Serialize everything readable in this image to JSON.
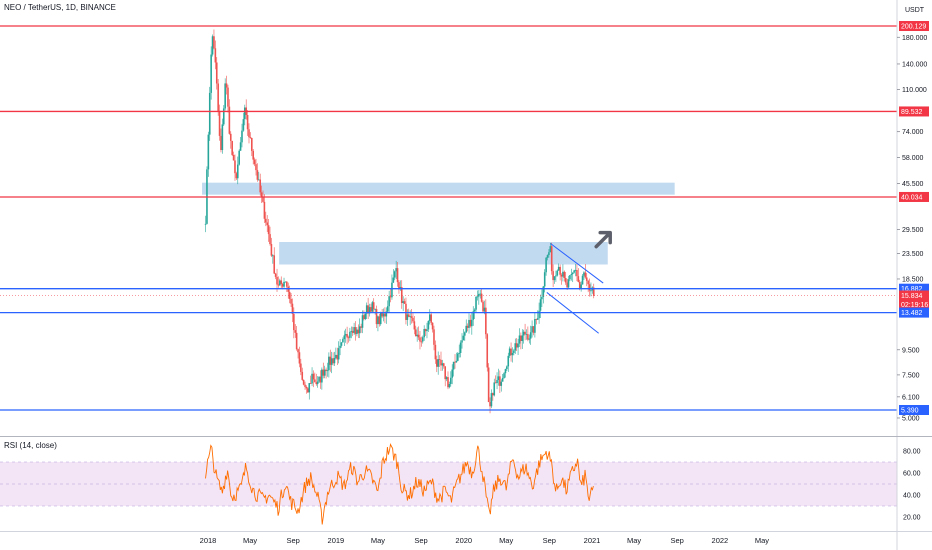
{
  "header": {
    "title": "NEO / TetherUS, 1D, BINANCE"
  },
  "rsi_panel": {
    "title": "RSI (14, close)"
  },
  "chart_data": [
    {
      "type": "candlestick",
      "title": "NEO / TetherUS, 1D, BINANCE",
      "scale": "log",
      "currency": "USDT",
      "price_axis_ticks": [
        "200.129",
        "180.000",
        "140.000",
        "110.000",
        "89.532",
        "74.000",
        "58.000",
        "45.500",
        "40.034",
        "29.500",
        "23.500",
        "18.500",
        "16.882",
        "15.834",
        "02:19:16",
        "13.482",
        "9.500",
        "7.500",
        "6.100",
        "5.390",
        "5.000"
      ],
      "x_tick_labels": [
        "2018",
        "May",
        "Sep",
        "2019",
        "May",
        "Sep",
        "2020",
        "May",
        "Sep",
        "2021",
        "May",
        "Sep",
        "2022",
        "May"
      ],
      "price_path": [
        [
          "2017-12-25",
          33
        ],
        [
          "2018-01-08",
          135
        ],
        [
          "2018-01-15",
          190
        ],
        [
          "2018-01-25",
          120
        ],
        [
          "2018-02-06",
          58
        ],
        [
          "2018-02-20",
          125
        ],
        [
          "2018-03-05",
          70
        ],
        [
          "2018-03-20",
          47
        ],
        [
          "2018-04-01",
          60
        ],
        [
          "2018-04-15",
          90
        ],
        [
          "2018-05-01",
          68
        ],
        [
          "2018-05-15",
          55
        ],
        [
          "2018-06-01",
          40
        ],
        [
          "2018-06-20",
          30
        ],
        [
          "2018-07-05",
          22
        ],
        [
          "2018-07-20",
          17
        ],
        [
          "2018-08-10",
          18.5
        ],
        [
          "2018-08-25",
          15
        ],
        [
          "2018-09-10",
          9.8
        ],
        [
          "2018-09-25",
          7.3
        ],
        [
          "2018-10-10",
          6.2
        ],
        [
          "2018-10-25",
          7.5
        ],
        [
          "2018-11-10",
          6.8
        ],
        [
          "2018-11-25",
          7.8
        ],
        [
          "2018-12-15",
          8.5
        ],
        [
          "2019-01-10",
          9.2
        ],
        [
          "2019-01-28",
          10.6
        ],
        [
          "2019-02-15",
          12
        ],
        [
          "2019-03-05",
          11
        ],
        [
          "2019-03-25",
          13.5
        ],
        [
          "2019-04-12",
          14.5
        ],
        [
          "2019-05-01",
          12.4
        ],
        [
          "2019-05-20",
          13.2
        ],
        [
          "2019-06-10",
          17.3
        ],
        [
          "2019-06-22",
          20.5
        ],
        [
          "2019-07-05",
          16
        ],
        [
          "2019-07-25",
          12.5
        ],
        [
          "2019-08-10",
          12
        ],
        [
          "2019-08-25",
          10.2
        ],
        [
          "2019-09-15",
          11.3
        ],
        [
          "2019-09-28",
          13.2
        ],
        [
          "2019-10-15",
          8.3
        ],
        [
          "2019-11-01",
          8.0
        ],
        [
          "2019-11-20",
          6.8
        ],
        [
          "2019-12-10",
          8.8
        ],
        [
          "2020-01-05",
          11.3
        ],
        [
          "2020-01-25",
          13.0
        ],
        [
          "2020-02-12",
          16.8
        ],
        [
          "2020-03-01",
          13.5
        ],
        [
          "2020-03-13",
          5.1
        ],
        [
          "2020-03-25",
          6.7
        ],
        [
          "2020-04-15",
          7.2
        ],
        [
          "2020-05-01",
          8.5
        ],
        [
          "2020-05-20",
          9.7
        ],
        [
          "2020-06-10",
          10.3
        ],
        [
          "2020-06-25",
          11.2
        ],
        [
          "2020-07-10",
          10.8
        ],
        [
          "2020-07-25",
          12.4
        ],
        [
          "2020-08-10",
          15.8
        ],
        [
          "2020-08-22",
          22
        ],
        [
          "2020-09-03",
          24.5
        ],
        [
          "2020-09-12",
          18.5
        ],
        [
          "2020-09-25",
          21.5
        ],
        [
          "2020-10-08",
          19.2
        ],
        [
          "2020-10-20",
          17.0
        ],
        [
          "2020-11-01",
          18.4
        ],
        [
          "2020-11-15",
          20.5
        ],
        [
          "2020-11-28",
          16.6
        ],
        [
          "2020-12-08",
          19.5
        ],
        [
          "2020-12-18",
          17.5
        ],
        [
          "2020-12-28",
          15.3
        ],
        [
          "2021-01-02",
          17.2
        ],
        [
          "2021-01-06",
          15.8
        ]
      ],
      "rsi": {
        "name": "RSI (14, close)",
        "ticks": [
          80,
          60,
          40,
          20
        ],
        "upper_band": 70,
        "lower_band": 30,
        "values": [
          [
            "2017-12-25",
            60
          ],
          [
            "2018-01-10",
            82
          ],
          [
            "2018-01-25",
            55
          ],
          [
            "2018-02-10",
            42
          ],
          [
            "2018-02-25",
            64
          ],
          [
            "2018-03-10",
            38
          ],
          [
            "2018-04-05",
            46
          ],
          [
            "2018-04-20",
            66
          ],
          [
            "2018-05-10",
            44
          ],
          [
            "2018-06-05",
            36
          ],
          [
            "2018-06-25",
            40
          ],
          [
            "2018-07-20",
            28
          ],
          [
            "2018-08-10",
            52
          ],
          [
            "2018-08-25",
            34
          ],
          [
            "2018-09-15",
            26
          ],
          [
            "2018-10-05",
            48
          ],
          [
            "2018-10-20",
            56
          ],
          [
            "2018-11-10",
            38
          ],
          [
            "2018-11-22",
            18
          ],
          [
            "2018-12-10",
            44
          ],
          [
            "2019-01-05",
            57
          ],
          [
            "2019-01-25",
            48
          ],
          [
            "2019-02-15",
            66
          ],
          [
            "2019-03-05",
            52
          ],
          [
            "2019-03-25",
            62
          ],
          [
            "2019-04-12",
            56
          ],
          [
            "2019-05-01",
            42
          ],
          [
            "2019-05-15",
            70
          ],
          [
            "2019-06-05",
            84
          ],
          [
            "2019-06-25",
            70
          ],
          [
            "2019-07-10",
            44
          ],
          [
            "2019-08-01",
            40
          ],
          [
            "2019-08-20",
            52
          ],
          [
            "2019-09-10",
            44
          ],
          [
            "2019-10-01",
            52
          ],
          [
            "2019-10-20",
            36
          ],
          [
            "2019-11-10",
            44
          ],
          [
            "2019-11-25",
            34
          ],
          [
            "2019-12-15",
            52
          ],
          [
            "2020-01-10",
            70
          ],
          [
            "2020-01-25",
            60
          ],
          [
            "2020-02-10",
            82
          ],
          [
            "2020-02-25",
            58
          ],
          [
            "2020-03-13",
            20
          ],
          [
            "2020-03-28",
            46
          ],
          [
            "2020-04-15",
            56
          ],
          [
            "2020-05-01",
            46
          ],
          [
            "2020-05-20",
            74
          ],
          [
            "2020-06-05",
            56
          ],
          [
            "2020-06-25",
            66
          ],
          [
            "2020-07-15",
            48
          ],
          [
            "2020-08-05",
            70
          ],
          [
            "2020-08-25",
            80
          ],
          [
            "2020-09-08",
            68
          ],
          [
            "2020-09-20",
            42
          ],
          [
            "2020-10-05",
            56
          ],
          [
            "2020-10-20",
            44
          ],
          [
            "2020-11-05",
            60
          ],
          [
            "2020-11-20",
            72
          ],
          [
            "2020-12-01",
            46
          ],
          [
            "2020-12-12",
            58
          ],
          [
            "2020-12-25",
            34
          ],
          [
            "2021-01-06",
            48
          ]
        ]
      },
      "horizontal_levels": [
        {
          "label": "200.129",
          "color": "#f23645"
        },
        {
          "label": "89.532",
          "color": "#f23645"
        },
        {
          "label": "40.034",
          "color": "#f23645"
        },
        {
          "label": "16.882",
          "color": "#2962ff"
        },
        {
          "label": "13.482",
          "color": "#2962ff"
        },
        {
          "label": "5.390",
          "color": "#2962ff"
        }
      ],
      "price_tags": [
        {
          "label": "15.834",
          "color": "#f23645"
        },
        {
          "label": "02:19:16",
          "color": "#f23645"
        }
      ],
      "colors": {
        "up": "#26a69a",
        "down": "#ef5350",
        "rsi_line": "#ff6d00",
        "rsi_band": "#e1bee7",
        "zone": "#bbd6ee"
      }
    }
  ]
}
